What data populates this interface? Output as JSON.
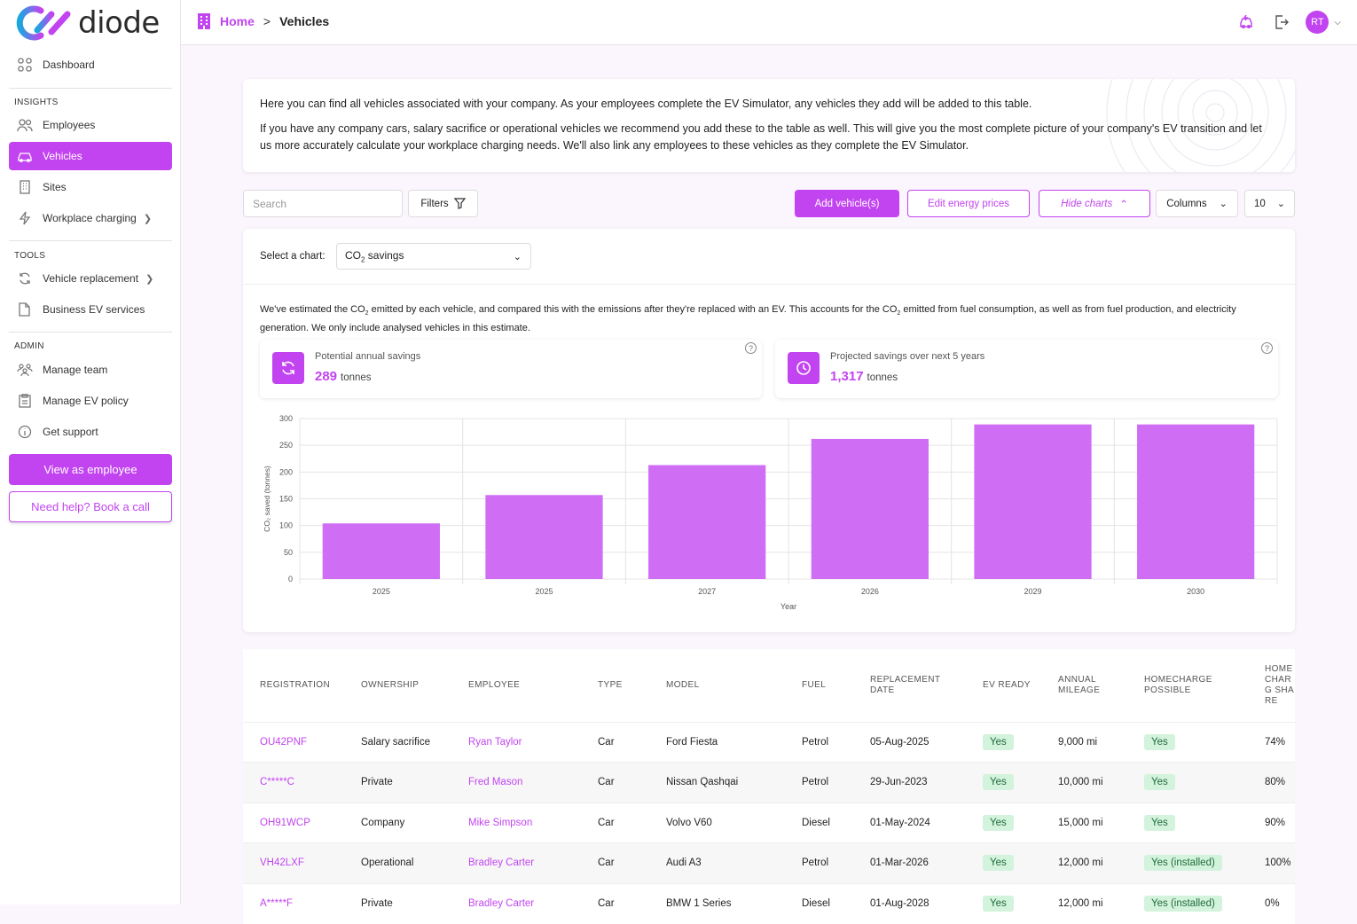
{
  "app": {
    "logo_text": "diode"
  },
  "sidebar": {
    "dashboard": "Dashboard",
    "insights_label": "INSIGHTS",
    "employees": "Employees",
    "vehicles": "Vehicles",
    "sites": "Sites",
    "workplace_charging": "Workplace charging",
    "tools_label": "TOOLS",
    "vehicle_replacement": "Vehicle replacement",
    "business_ev_services": "Business EV services",
    "admin_label": "ADMIN",
    "manage_team": "Manage team",
    "manage_ev_policy": "Manage EV policy",
    "get_support": "Get support",
    "view_as_employee": "View as employee",
    "need_help": "Need help? Book a call"
  },
  "topbar": {
    "home": "Home",
    "separator": ">",
    "current": "Vehicles",
    "avatar": "RT"
  },
  "intro": {
    "p1": "Here you can find all vehicles associated with your company. As your employees complete the EV Simulator, any vehicles they add will be added to this table.",
    "p2": "If you have any company cars, salary sacrifice or operational vehicles we recommend you add these to the table as well. This will give you the most complete picture of your company's EV transition and let us more accurately calculate your workplace charging needs. We'll also link any employees to these vehicles as they complete the EV Simulator."
  },
  "toolbar": {
    "search_placeholder": "Search",
    "filters": "Filters",
    "add_vehicles": "Add vehicle(s)",
    "edit_energy_prices": "Edit energy prices",
    "hide_charts": "Hide charts",
    "columns": "Columns",
    "page_size": "10"
  },
  "chart_panel": {
    "select_label": "Select a chart:",
    "selected_prefix": "CO",
    "selected_sub": "2",
    "selected_suffix": " savings",
    "desc_a": "We've estimated the CO",
    "desc_b": " emitted by each vehicle, and compared this with the emissions after they're replaced with an EV. This accounts for the CO",
    "desc_c": " emitted from fuel consumption, as well as from fuel production, and electricity generation. We only include analysed vehicles in this estimate.",
    "sub2": "2",
    "stat1_label": "Potential annual savings",
    "stat1_value": "289",
    "stat1_unit": "tonnes",
    "stat2_label": "Projected savings over next 5 years",
    "stat2_value": "1,317",
    "stat2_unit": "tonnes",
    "help_glyph": "?"
  },
  "chart_data": {
    "type": "bar",
    "categories": [
      "2025",
      "2025",
      "2027",
      "2026",
      "2029",
      "2030"
    ],
    "values": [
      104,
      157,
      213,
      262,
      289,
      289
    ],
    "xlabel": "Year",
    "ylabel": "CO₂ saved (tonnes)",
    "ylim": [
      0,
      300
    ],
    "yticks": [
      0,
      50,
      100,
      150,
      200,
      250,
      300
    ],
    "grid": true,
    "color": "#cf6ef5"
  },
  "table": {
    "headers": [
      "REGISTRATION",
      "OWNERSHIP",
      "EMPLOYEE",
      "TYPE",
      "MODEL",
      "FUEL",
      "REPLACEMENT DATE",
      "EV READY",
      "ANNUAL MILEAGE",
      "HOMECHARGE POSSIBLE",
      "HOME CHARG SHARE"
    ],
    "rows": [
      [
        "OU42PNF",
        "Salary sacrifice",
        "Ryan Taylor",
        "Car",
        "Ford Fiesta",
        "Petrol",
        "05-Aug-2025",
        "Yes",
        "9,000 mi",
        "Yes",
        "74%"
      ],
      [
        "C*****C",
        "Private",
        "Fred Mason",
        "Car",
        "Nissan Qashqai",
        "Petrol",
        "29-Jun-2023",
        "Yes",
        "10,000 mi",
        "Yes",
        "80%"
      ],
      [
        "OH91WCP",
        "Company",
        "Mike Simpson",
        "Car",
        "Volvo V60",
        "Diesel",
        "01-May-2024",
        "Yes",
        "15,000 mi",
        "Yes",
        "90%"
      ],
      [
        "VH42LXF",
        "Operational",
        "Bradley Carter",
        "Car",
        "Audi A3",
        "Petrol",
        "01-Mar-2026",
        "Yes",
        "12,000 mi",
        "Yes (installed)",
        "100%"
      ],
      [
        "A*****F",
        "Private",
        "Bradley Carter",
        "Car",
        "BMW 1 Series",
        "Diesel",
        "01-Aug-2028",
        "Yes",
        "12,000 mi",
        "Yes (installed)",
        "0%"
      ]
    ]
  },
  "colors": {
    "accent": "#c244f0",
    "bar": "#cf6ef5",
    "pill_bg": "#d3f3dc",
    "pill_text": "#1f6b3a"
  }
}
